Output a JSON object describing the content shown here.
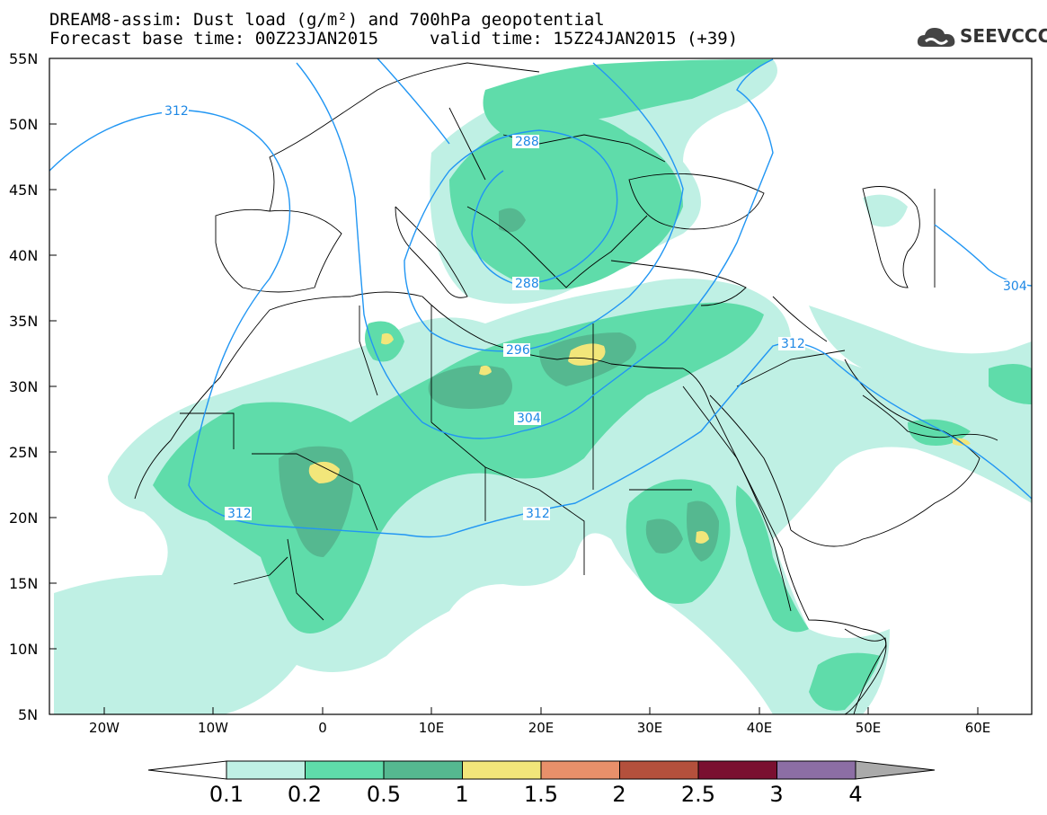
{
  "title": {
    "line1": "DREAM8-assim: Dust load (g/m²) and 700hPa geopotential",
    "line2_left": "Forecast base time: 00Z23JAN2015",
    "line2_right": "valid time: 15Z24JAN2015 (+39)"
  },
  "logo": {
    "text": "SEEVCCC",
    "icon": "cloud-icon"
  },
  "axes": {
    "lat_labels": [
      "55N",
      "50N",
      "45N",
      "40N",
      "35N",
      "30N",
      "25N",
      "20N",
      "15N",
      "10N",
      "5N"
    ],
    "lon_labels": [
      "20W",
      "10W",
      "0",
      "10E",
      "20E",
      "30E",
      "40E",
      "50E",
      "60E"
    ]
  },
  "contour_labels": [
    "312",
    "288",
    "288",
    "296",
    "304",
    "312",
    "312",
    "312",
    "304"
  ],
  "colorbar": {
    "ticks": [
      "0.1",
      "0.2",
      "0.5",
      "1",
      "1.5",
      "2",
      "2.5",
      "3",
      "4"
    ],
    "colors": [
      "#bff0e4",
      "#5fdcaa",
      "#55b890",
      "#f2e67a",
      "#e8906a",
      "#b4503c",
      "#7a1030",
      "#8c6ea4"
    ]
  },
  "map_colors": {
    "light": "#bff0e4",
    "medium": "#5fdcaa",
    "dark": "#55b890",
    "yellow": "#f2e67a",
    "contour": "#2196f3"
  }
}
